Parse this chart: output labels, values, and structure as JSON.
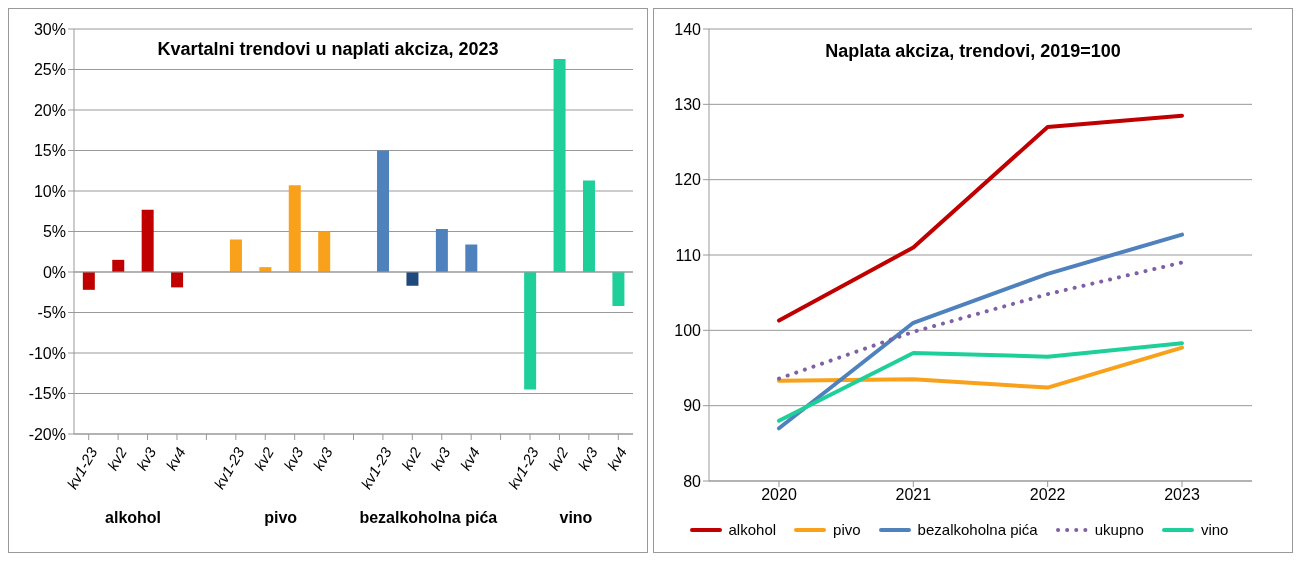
{
  "chart_data": [
    {
      "type": "bar",
      "title": "Kvartalni trendovi u naplati akciza, 2023",
      "categories": [
        "kv1-23",
        "kv2",
        "kv3",
        "kv4",
        null,
        "kv1-23",
        "kv2",
        "kv3",
        "kv3",
        null,
        "kv1-23",
        "kv2",
        "kv3",
        "kv4",
        null,
        "kv1-23",
        "kv2",
        "kv3",
        "kv4"
      ],
      "values": [
        -2.2,
        1.5,
        7.7,
        -1.9,
        null,
        4.0,
        0.6,
        10.7,
        5.0,
        null,
        15.0,
        -1.7,
        5.3,
        3.4,
        null,
        -14.5,
        26.3,
        11.3,
        -4.2
      ],
      "colors": [
        "#c00000",
        "#c00000",
        "#c00000",
        "#c00000",
        "#ffffff",
        "#f9a11b",
        "#f9a11b",
        "#f9a11b",
        "#f9a11b",
        "#ffffff",
        "#4f81bd",
        "#1f497d",
        "#4f81bd",
        "#4f81bd",
        "#ffffff",
        "#1fcf9a",
        "#1fcf9a",
        "#1fcf9a",
        "#1fcf9a"
      ],
      "annotations": [
        "alkohol",
        "pivo",
        "bezalkoholna pića",
        "vino"
      ],
      "ylim": [
        -20,
        30
      ],
      "yticks": [
        {
          "value": -20,
          "label": "-20%"
        },
        {
          "value": -15,
          "label": "-15%"
        },
        {
          "value": -10,
          "label": "-10%"
        },
        {
          "value": -5,
          "label": "-5%"
        },
        {
          "value": 0,
          "label": "0%"
        },
        {
          "value": 5,
          "label": "5%"
        },
        {
          "value": 10,
          "label": "10%"
        },
        {
          "value": 15,
          "label": "15%"
        },
        {
          "value": 20,
          "label": "20%"
        },
        {
          "value": 25,
          "label": "25%"
        },
        {
          "value": 30,
          "label": "30%"
        }
      ],
      "grid": "y"
    },
    {
      "type": "line",
      "title": "Naplata akciza, trendovi, 2019=100",
      "categories": [
        "2020",
        "2021",
        "2022",
        "2023"
      ],
      "series": [
        {
          "name": "alkohol",
          "color": "#c00000",
          "values": [
            101.3,
            111,
            127,
            128.5
          ]
        },
        {
          "name": "pivo",
          "color": "#f9a11b",
          "values": [
            93.3,
            93.5,
            92.4,
            97.7
          ]
        },
        {
          "name": "bezalkoholna pića",
          "color": "#4f81bd",
          "values": [
            87,
            101,
            107.5,
            112.7
          ]
        },
        {
          "name": "ukupno",
          "color": "#7f5fa5",
          "values": [
            93.6,
            99.8,
            104.8,
            109
          ],
          "line_style": "dotted"
        },
        {
          "name": "vino",
          "color": "#1fcf9a",
          "values": [
            88,
            97,
            96.5,
            98.3
          ]
        }
      ],
      "ylim": [
        80,
        140
      ],
      "yticks": [
        80,
        90,
        100,
        110,
        120,
        130,
        140
      ],
      "grid": "y",
      "legend": "bottom",
      "marker": "none",
      "line_style": "solid"
    }
  ]
}
